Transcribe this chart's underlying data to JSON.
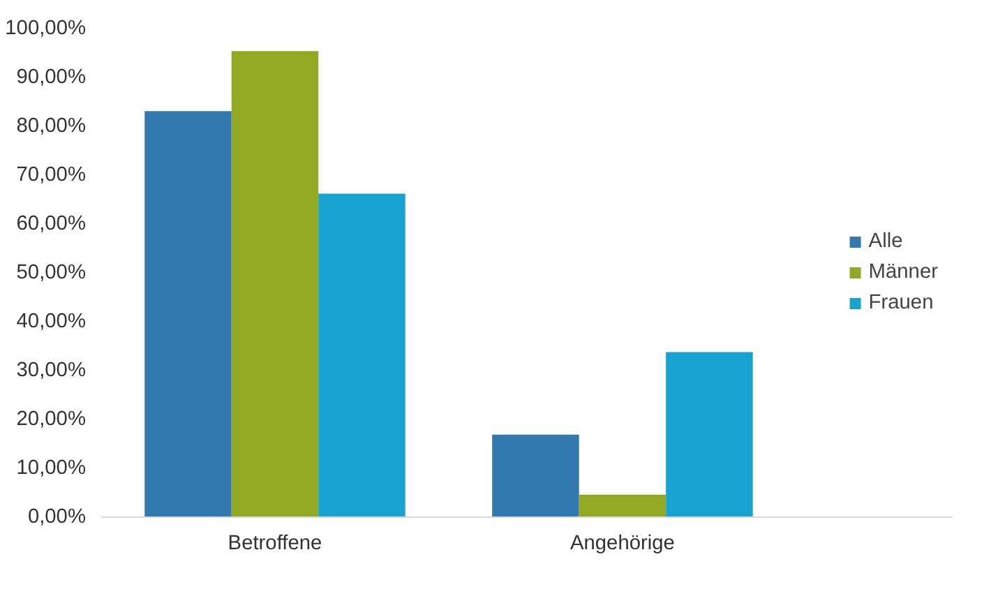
{
  "chart_data": {
    "type": "bar",
    "categories": [
      "Betroffene",
      "Angehörige"
    ],
    "series": [
      {
        "name": "Alle",
        "color": "#3279b0",
        "values": [
          83.1,
          16.9
        ]
      },
      {
        "name": "Männer",
        "color": "#93a923",
        "values": [
          95.4,
          4.6
        ]
      },
      {
        "name": "Frauen",
        "color": "#18a2cf",
        "values": [
          66.2,
          33.8
        ]
      }
    ],
    "ylim": [
      0,
      100
    ],
    "yticks": [
      {
        "value": 0,
        "label": "0,00%"
      },
      {
        "value": 10,
        "label": "10,00%"
      },
      {
        "value": 20,
        "label": "20,00%"
      },
      {
        "value": 30,
        "label": "30,00%"
      },
      {
        "value": 40,
        "label": "40,00%"
      },
      {
        "value": 50,
        "label": "50,00%"
      },
      {
        "value": 60,
        "label": "60,00%"
      },
      {
        "value": 70,
        "label": "70,00%"
      },
      {
        "value": 80,
        "label": "80,00%"
      },
      {
        "value": 90,
        "label": "90,00%"
      },
      {
        "value": 100,
        "label": "100,00%"
      }
    ],
    "grid": false,
    "legend": "right"
  }
}
